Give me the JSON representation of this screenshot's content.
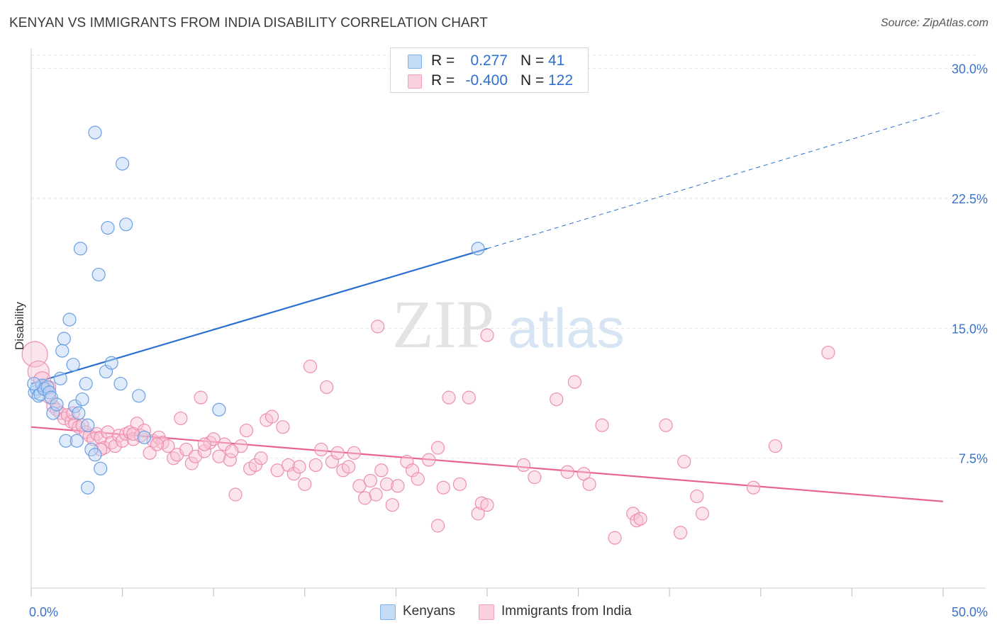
{
  "title": "KENYAN VS IMMIGRANTS FROM INDIA DISABILITY CORRELATION CHART",
  "source": "Source: ZipAtlas.com",
  "watermark": {
    "zip": "ZIP",
    "atlas": "atlas"
  },
  "legend": {
    "rows": [
      {
        "r_label": "R =",
        "r_value": "0.277",
        "n_label": "N =",
        "n_value": "41",
        "color": "#7fb1ee"
      },
      {
        "r_label": "R =",
        "r_value": "-0.400",
        "n_label": "N = ",
        "n_value": "122",
        "color": "#f4a0bc"
      }
    ]
  },
  "bottom_legend": [
    {
      "label": "Kenyans",
      "color": "#b8d3f5"
    },
    {
      "label": "Immigrants from India",
      "color": "#f9c4d4"
    }
  ],
  "chart_data": {
    "type": "scatter",
    "title": "KENYAN VS IMMIGRANTS FROM INDIA DISABILITY CORRELATION CHART",
    "xlabel": "",
    "ylabel": "Disability",
    "xlim": [
      0,
      50
    ],
    "ylim": [
      0,
      31.5
    ],
    "x_tick_labels": [
      {
        "value": 0,
        "label": "0.0%"
      },
      {
        "value": 50,
        "label": "50.0%"
      }
    ],
    "y_tick_labels": [
      {
        "value": 7.5,
        "label": "7.5%"
      },
      {
        "value": 15,
        "label": "15.0%"
      },
      {
        "value": 22.5,
        "label": "22.5%"
      },
      {
        "value": 30,
        "label": "30.0%"
      }
    ],
    "grid": true,
    "legend_position": "top-center",
    "series": [
      {
        "name": "Kenyans",
        "color": "#7fb1ee",
        "points": [
          [
            0.2,
            11.3
          ],
          [
            0.3,
            11.5
          ],
          [
            0.4,
            11.1
          ],
          [
            0.5,
            11.2
          ],
          [
            0.6,
            11.7
          ],
          [
            0.7,
            11.5
          ],
          [
            0.9,
            11.6
          ],
          [
            1.0,
            11.3
          ],
          [
            1.1,
            11.0
          ],
          [
            1.2,
            10.1
          ],
          [
            1.4,
            10.6
          ],
          [
            1.7,
            13.7
          ],
          [
            1.8,
            14.4
          ],
          [
            1.6,
            12.1
          ],
          [
            1.9,
            8.5
          ],
          [
            2.1,
            15.5
          ],
          [
            2.3,
            12.9
          ],
          [
            2.4,
            10.5
          ],
          [
            2.5,
            8.5
          ],
          [
            2.6,
            10.1
          ],
          [
            2.8,
            10.9
          ],
          [
            3.0,
            11.8
          ],
          [
            3.1,
            9.4
          ],
          [
            3.3,
            8.0
          ],
          [
            3.5,
            7.7
          ],
          [
            3.8,
            6.9
          ],
          [
            3.1,
            5.8
          ],
          [
            2.7,
            19.6
          ],
          [
            3.7,
            18.1
          ],
          [
            3.5,
            26.3
          ],
          [
            4.2,
            20.8
          ],
          [
            5.0,
            24.5
          ],
          [
            5.2,
            21.0
          ],
          [
            4.1,
            12.5
          ],
          [
            4.4,
            13.0
          ],
          [
            4.9,
            11.8
          ],
          [
            5.9,
            11.1
          ],
          [
            6.2,
            8.7
          ],
          [
            10.3,
            10.3
          ],
          [
            24.5,
            19.6
          ],
          [
            0.15,
            11.8
          ]
        ],
        "trend": {
          "x0": 0,
          "y0": 11.8,
          "x1": 25,
          "y1": 19.6
        },
        "trend_extension": {
          "x0": 25,
          "y0": 19.6,
          "x1": 50,
          "y1": 27.5
        }
      },
      {
        "name": "Immigrants from India",
        "color": "#f4a0bc",
        "points": [
          [
            0.2,
            13.5
          ],
          [
            0.4,
            12.5
          ],
          [
            0.6,
            12.0
          ],
          [
            0.8,
            11.5
          ],
          [
            1.0,
            11.0
          ],
          [
            1.2,
            10.5
          ],
          [
            1.4,
            10.3
          ],
          [
            1.6,
            10.1
          ],
          [
            1.8,
            9.8
          ],
          [
            2.0,
            10.0
          ],
          [
            2.2,
            9.6
          ],
          [
            2.4,
            9.5
          ],
          [
            2.6,
            9.3
          ],
          [
            2.8,
            9.4
          ],
          [
            3.0,
            9.0
          ],
          [
            3.2,
            8.8
          ],
          [
            3.4,
            8.6
          ],
          [
            3.6,
            8.9
          ],
          [
            3.8,
            8.7
          ],
          [
            4.0,
            8.1
          ],
          [
            4.2,
            9.0
          ],
          [
            4.4,
            8.4
          ],
          [
            4.6,
            8.2
          ],
          [
            4.8,
            8.8
          ],
          [
            5.0,
            8.5
          ],
          [
            5.2,
            8.9
          ],
          [
            5.4,
            9.0
          ],
          [
            5.6,
            8.6
          ],
          [
            5.8,
            9.5
          ],
          [
            6.0,
            8.8
          ],
          [
            6.2,
            9.1
          ],
          [
            6.5,
            7.8
          ],
          [
            6.7,
            8.5
          ],
          [
            7.0,
            8.7
          ],
          [
            7.2,
            8.4
          ],
          [
            7.5,
            8.2
          ],
          [
            7.8,
            7.5
          ],
          [
            8.0,
            7.7
          ],
          [
            8.2,
            9.8
          ],
          [
            8.5,
            8.0
          ],
          [
            8.8,
            7.2
          ],
          [
            9.0,
            7.6
          ],
          [
            9.3,
            11.0
          ],
          [
            9.5,
            7.9
          ],
          [
            9.8,
            8.4
          ],
          [
            10.0,
            8.6
          ],
          [
            10.3,
            7.6
          ],
          [
            10.6,
            8.3
          ],
          [
            10.9,
            7.4
          ],
          [
            11.2,
            5.4
          ],
          [
            11.5,
            8.2
          ],
          [
            11.8,
            9.1
          ],
          [
            12.0,
            6.9
          ],
          [
            12.3,
            7.1
          ],
          [
            12.6,
            7.5
          ],
          [
            12.9,
            9.7
          ],
          [
            13.2,
            9.9
          ],
          [
            13.5,
            6.8
          ],
          [
            13.8,
            9.3
          ],
          [
            14.1,
            7.1
          ],
          [
            14.4,
            6.6
          ],
          [
            14.7,
            7.0
          ],
          [
            15.0,
            6.0
          ],
          [
            15.3,
            12.8
          ],
          [
            15.6,
            7.1
          ],
          [
            15.9,
            8.0
          ],
          [
            16.2,
            11.6
          ],
          [
            16.5,
            7.3
          ],
          [
            16.8,
            7.8
          ],
          [
            17.1,
            6.8
          ],
          [
            17.4,
            7.0
          ],
          [
            17.7,
            7.8
          ],
          [
            18.0,
            5.9
          ],
          [
            18.3,
            5.2
          ],
          [
            18.6,
            6.2
          ],
          [
            18.9,
            5.4
          ],
          [
            19.2,
            6.8
          ],
          [
            19.5,
            6.0
          ],
          [
            19.0,
            15.1
          ],
          [
            19.8,
            4.8
          ],
          [
            20.1,
            5.9
          ],
          [
            20.6,
            7.3
          ],
          [
            20.9,
            6.8
          ],
          [
            21.2,
            6.3
          ],
          [
            21.8,
            7.4
          ],
          [
            22.3,
            8.1
          ],
          [
            22.6,
            5.8
          ],
          [
            22.3,
            3.6
          ],
          [
            22.9,
            11.0
          ],
          [
            23.5,
            6.0
          ],
          [
            24.0,
            11.0
          ],
          [
            24.5,
            4.3
          ],
          [
            24.7,
            4.9
          ],
          [
            25.0,
            4.8
          ],
          [
            25.0,
            14.6
          ],
          [
            27.0,
            7.1
          ],
          [
            27.6,
            6.4
          ],
          [
            28.8,
            10.9
          ],
          [
            29.4,
            6.7
          ],
          [
            29.8,
            11.9
          ],
          [
            30.3,
            6.6
          ],
          [
            30.6,
            6.0
          ],
          [
            31.3,
            9.4
          ],
          [
            32.0,
            2.9
          ],
          [
            33.0,
            4.3
          ],
          [
            33.2,
            3.9
          ],
          [
            33.4,
            4.0
          ],
          [
            34.8,
            9.4
          ],
          [
            35.6,
            3.2
          ],
          [
            35.8,
            7.3
          ],
          [
            36.5,
            5.3
          ],
          [
            36.8,
            4.3
          ],
          [
            39.6,
            5.8
          ],
          [
            40.8,
            8.2
          ],
          [
            43.7,
            13.6
          ],
          [
            1.0,
            11.6
          ],
          [
            2.3,
            10.1
          ],
          [
            3.8,
            8.0
          ],
          [
            5.6,
            8.9
          ],
          [
            6.9,
            8.3
          ],
          [
            9.5,
            8.3
          ],
          [
            11.0,
            7.9
          ]
        ],
        "trend": {
          "x0": 0,
          "y0": 9.3,
          "x1": 50,
          "y1": 5.0
        }
      }
    ]
  }
}
